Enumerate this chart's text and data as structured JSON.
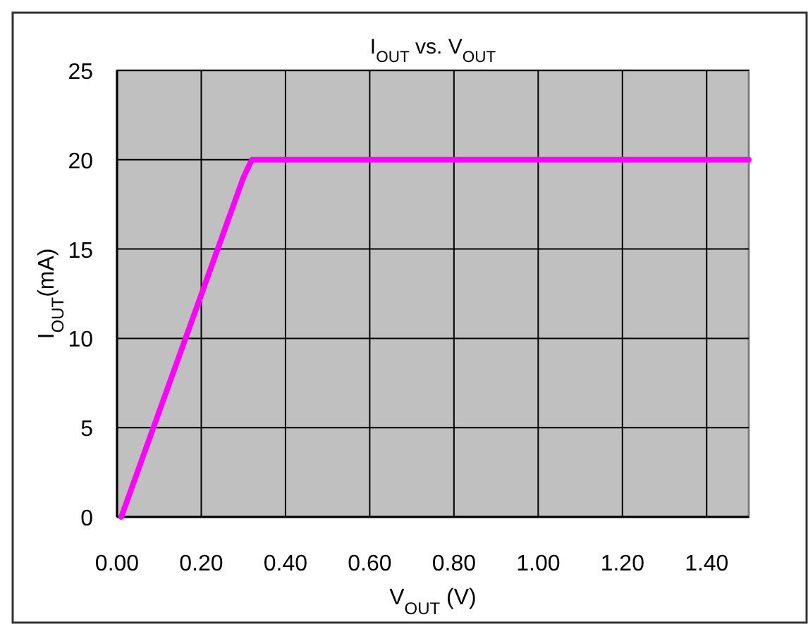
{
  "chart_data": {
    "type": "line",
    "title": "I$_{OUT}$ vs. V$_{OUT}$",
    "xlabel": "V$_{OUT}$ (V)",
    "ylabel": "I$_{OUT}$(mA)",
    "x": [
      0.01,
      0.3,
      0.32,
      1.5
    ],
    "series": [
      {
        "color": "#ff00ff",
        "values": [
          0,
          19,
          20,
          20
        ]
      }
    ],
    "xlim": [
      0,
      1.5
    ],
    "xticks": [
      {
        "value": 0,
        "label": "0.00"
      },
      {
        "value": 0.2,
        "label": "0.20"
      },
      {
        "value": 0.4,
        "label": "0.40"
      },
      {
        "value": 0.6,
        "label": "0.60"
      },
      {
        "value": 0.8,
        "label": "0.80"
      },
      {
        "value": 1.0,
        "label": "1.00"
      },
      {
        "value": 1.2,
        "label": "1.20"
      },
      {
        "value": 1.4,
        "label": "1.40"
      }
    ],
    "ylim": [
      0,
      25
    ],
    "yticks": [
      0,
      5,
      10,
      15,
      20,
      25
    ],
    "grid": true,
    "marker": "none",
    "line_style": "solid"
  }
}
